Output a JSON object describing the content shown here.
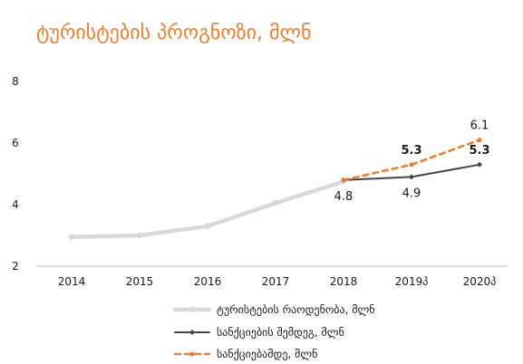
{
  "title": "ტურისტების პროგნოზი, მლნ",
  "colors": {
    "title": "#ED7D31",
    "tourists": "#D9D9D9",
    "with_sanctions": "#44473F",
    "without_sanctions": "#ED7D31",
    "axis": "#BFBFBF",
    "text": "#1a1a1a"
  },
  "chart_data": {
    "type": "line",
    "title": "ტურისტების პროგნოზი, მლნ",
    "xlabel": "",
    "ylabel": "",
    "categories": [
      "2014",
      "2015",
      "2016",
      "2017",
      "2018",
      "2019პ",
      "2020პ"
    ],
    "ylim": [
      2,
      8
    ],
    "yticks": [
      2,
      4,
      6,
      8
    ],
    "grid": false,
    "legend_position": "bottom",
    "series": [
      {
        "name": "ტურისტების რაოდენობა, მლნ",
        "key": "tourists",
        "line_style": "solid",
        "values": [
          2.95,
          3.0,
          3.3,
          4.05,
          4.75,
          null,
          null
        ]
      },
      {
        "name": "სანქციების შემდეგ, მლნ",
        "key": "with_sanctions",
        "line_style": "solid",
        "values": [
          null,
          null,
          null,
          null,
          4.8,
          4.9,
          5.3
        ]
      },
      {
        "name": "სანქციებამდე, მლნ",
        "key": "without_sanctions",
        "line_style": "dashed",
        "values": [
          null,
          null,
          null,
          null,
          4.8,
          5.3,
          6.1
        ]
      }
    ],
    "data_labels": [
      {
        "series": "with_sanctions",
        "index": 4,
        "text": "4.8",
        "placement": "below",
        "bold": false
      },
      {
        "series": "with_sanctions",
        "index": 5,
        "text": "4.9",
        "placement": "below",
        "bold": false
      },
      {
        "series": "with_sanctions",
        "index": 6,
        "text": "5.3",
        "placement": "above",
        "bold": true
      },
      {
        "series": "without_sanctions",
        "index": 5,
        "text": "5.3",
        "placement": "above",
        "bold": true
      },
      {
        "series": "without_sanctions",
        "index": 6,
        "text": "6.1",
        "placement": "above",
        "bold": false
      }
    ]
  }
}
